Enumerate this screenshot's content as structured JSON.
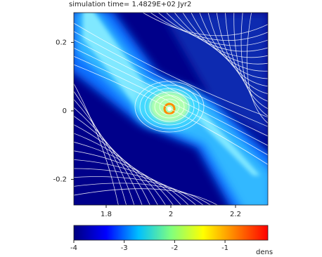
{
  "chart_data": {
    "type": "heatmap",
    "title": "simulation time= 1.4829E+02 Jyr2",
    "xlim": [
      1.7,
      2.3
    ],
    "xticks": [
      1.8,
      2,
      2.2
    ],
    "ylim": [
      -0.275,
      0.287
    ],
    "yticks": [
      -0.2,
      0,
      0.2
    ],
    "colorbar": {
      "label": "dens",
      "lim": [
        -4,
        -0.15
      ],
      "ticks": [
        -4,
        -3,
        -2,
        -1
      ],
      "colors": [
        "#00007f",
        "#0000ff",
        "#00bfff",
        "#7fff7f",
        "#ffff00",
        "#ff7f00",
        "#ff0000"
      ]
    }
  }
}
